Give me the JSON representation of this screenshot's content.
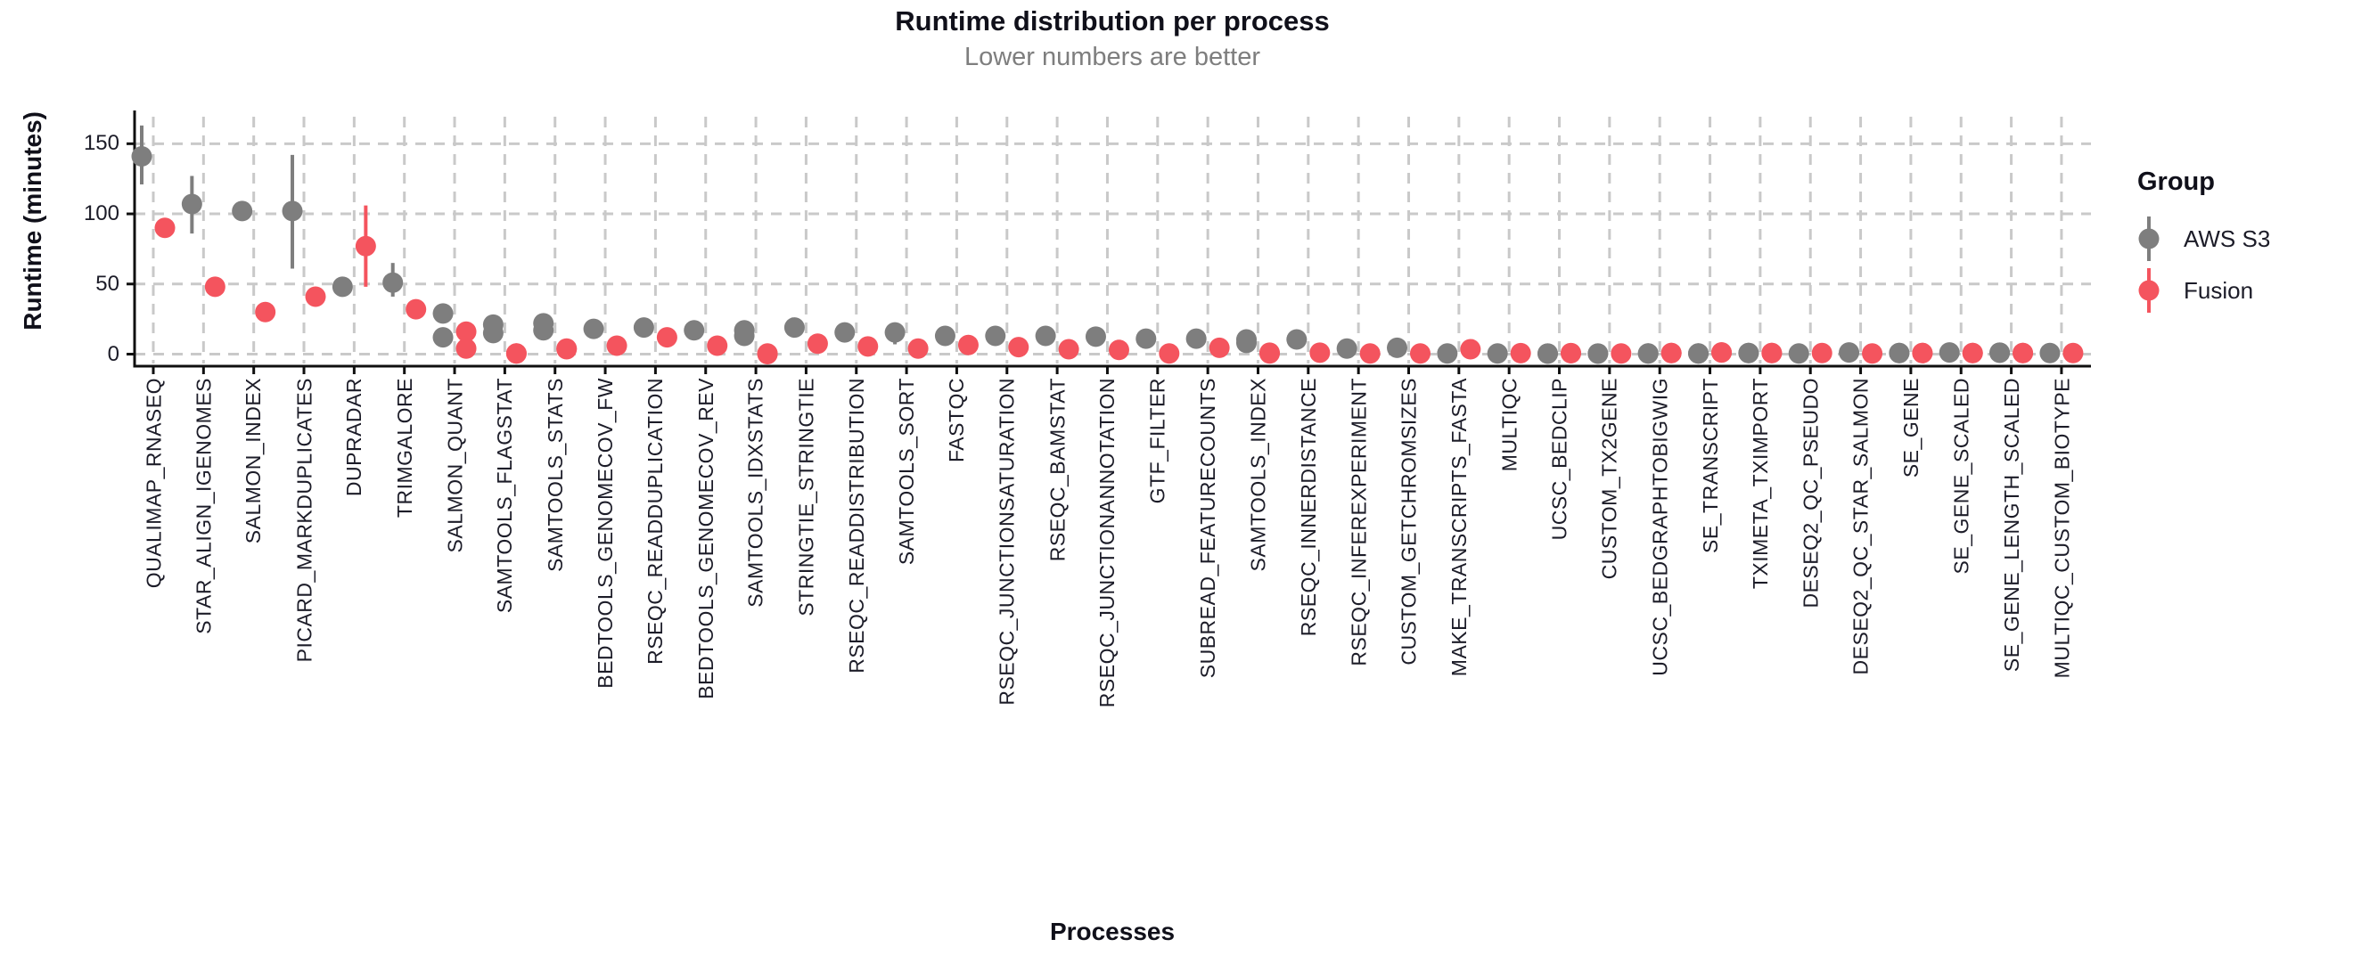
{
  "header": {
    "title": "Runtime distribution per process",
    "subtitle": "Lower numbers are better"
  },
  "legend": {
    "title": "Group",
    "items": [
      {
        "label": "AWS S3",
        "color": "#7e7e7e"
      },
      {
        "label": "Fusion",
        "color": "#f4545e"
      }
    ]
  },
  "colors": {
    "aws": "#7e7e7e",
    "fusion": "#f4545e",
    "grid": "#c9c9c9",
    "axis": "#0f0f0f",
    "text_dark": "#1c1c28",
    "title_text": "#10101a",
    "subtitle_text": "#7e7e7e"
  },
  "chart_data": {
    "type": "scatter",
    "title": "Runtime distribution per process",
    "subtitle": "Lower numbers are better",
    "xlabel": "Processes",
    "ylabel": "Runtime (minutes)",
    "yticks": [
      0,
      50,
      100,
      150
    ],
    "ylim": [
      -8,
      170
    ],
    "grid": "dashed-both",
    "legend_position": "right",
    "marker": "pointrange",
    "categories": [
      "QUALIMAP_RNASEQ",
      "STAR_ALIGN_IGENOMES",
      "SALMON_INDEX",
      "PICARD_MARKDUPLICATES",
      "DUPRADAR",
      "TRIMGALORE",
      "SALMON_QUANT",
      "SAMTOOLS_FLAGSTAT",
      "SAMTOOLS_STATS",
      "BEDTOOLS_GENOMECOV_FW",
      "RSEQC_READDUPLICATION",
      "BEDTOOLS_GENOMECOV_REV",
      "SAMTOOLS_IDXSTATS",
      "STRINGTIE_STRINGTIE",
      "RSEQC_READDISTRIBUTION",
      "SAMTOOLS_SORT",
      "FASTQC",
      "RSEQC_JUNCTIONSATURATION",
      "RSEQC_BAMSTAT",
      "RSEQC_JUNCTIONANNOTATION",
      "GTF_FILTER",
      "SUBREAD_FEATURECOUNTS",
      "SAMTOOLS_INDEX",
      "RSEQC_INNERDISTANCE",
      "RSEQC_INFEREXPERIMENT",
      "CUSTOM_GETCHROMSIZES",
      "MAKE_TRANSCRIPTS_FASTA",
      "MULTIQC",
      "UCSC_BEDCLIP",
      "CUSTOM_TX2GENE",
      "UCSC_BEDGRAPHTOBIGWIG",
      "SE_TRANSCRIPT",
      "TXIMETA_TXIMPORT",
      "DESEQ2_QC_PSEUDO",
      "DESEQ2_QC_STAR_SALMON",
      "SE_GENE",
      "SE_GENE_SCALED",
      "SE_GENE_LENGTH_SCALED",
      "MULTIQC_CUSTOM_BIOTYPE"
    ],
    "series": [
      {
        "name": "AWS S3",
        "color": "#7e7e7e",
        "values": [
          [
            141
          ],
          [
            107
          ],
          [
            102
          ],
          [
            102
          ],
          [
            48
          ],
          [
            51
          ],
          [
            29,
            12
          ],
          [
            21,
            15
          ],
          [
            22,
            17
          ],
          [
            18
          ],
          [
            19
          ],
          [
            17
          ],
          [
            17,
            13
          ],
          [
            19
          ],
          [
            15.5
          ],
          [
            15.5
          ],
          [
            13
          ],
          [
            13
          ],
          [
            13
          ],
          [
            12.5
          ],
          [
            11
          ],
          [
            11
          ],
          [
            10.5,
            8
          ],
          [
            10.5
          ],
          [
            4
          ],
          [
            4.5
          ],
          [
            0.5
          ],
          [
            0.5
          ],
          [
            0.4,
            0.4
          ],
          [
            0.4,
            0.4
          ],
          [
            0.5,
            0.5
          ],
          [
            0.5,
            0.5
          ],
          [
            0.8,
            0.8
          ],
          [
            0.5
          ],
          [
            1.2
          ],
          [
            0.8,
            0.8
          ],
          [
            1.2
          ],
          [
            1,
            1
          ],
          [
            0.8
          ]
        ],
        "ranges": [
          [
            121,
            163
          ],
          [
            86,
            127
          ],
          null,
          [
            61,
            142
          ],
          [
            43,
            53
          ],
          [
            41,
            65
          ],
          null,
          null,
          null,
          null,
          null,
          null,
          [
            12,
            19
          ],
          null,
          null,
          [
            7,
            22
          ],
          null,
          null,
          null,
          null,
          null,
          null,
          null,
          null,
          null,
          null,
          null,
          null,
          null,
          null,
          null,
          null,
          null,
          null,
          null,
          null,
          null,
          null,
          null
        ]
      },
      {
        "name": "Fusion",
        "color": "#f4545e",
        "values": [
          [
            90
          ],
          [
            48
          ],
          [
            30
          ],
          [
            41
          ],
          [
            77
          ],
          [
            32
          ],
          [
            16,
            4
          ],
          [
            0.5,
            0.5
          ],
          [
            3.5,
            4
          ],
          [
            6
          ],
          [
            12
          ],
          [
            6
          ],
          [
            0.5,
            0
          ],
          [
            7.5
          ],
          [
            5.5
          ],
          [
            4
          ],
          [
            6.5
          ],
          [
            5
          ],
          [
            3.5
          ],
          [
            3
          ],
          [
            0.5
          ],
          [
            4.5
          ],
          [
            1,
            0.5
          ],
          [
            1
          ],
          [
            0.5
          ],
          [
            0.5
          ],
          [
            3.5
          ],
          [
            0.7
          ],
          [
            0.7,
            0.7
          ],
          [
            0.5
          ],
          [
            0.8,
            0.8
          ],
          [
            1.2,
            1.2
          ],
          [
            0.8,
            0.8
          ],
          [
            0.8
          ],
          [
            0.5
          ],
          [
            0.8,
            0.8
          ],
          [
            0.8,
            0.8
          ],
          [
            0.8,
            0.8
          ],
          [
            0.8
          ]
        ],
        "ranges": [
          [
            84,
            96
          ],
          null,
          null,
          null,
          [
            48,
            106
          ],
          null,
          null,
          null,
          null,
          null,
          null,
          null,
          null,
          null,
          null,
          null,
          null,
          null,
          null,
          null,
          null,
          null,
          null,
          null,
          null,
          null,
          null,
          null,
          null,
          null,
          null,
          null,
          null,
          null,
          null,
          null,
          null,
          null,
          null
        ]
      }
    ]
  }
}
